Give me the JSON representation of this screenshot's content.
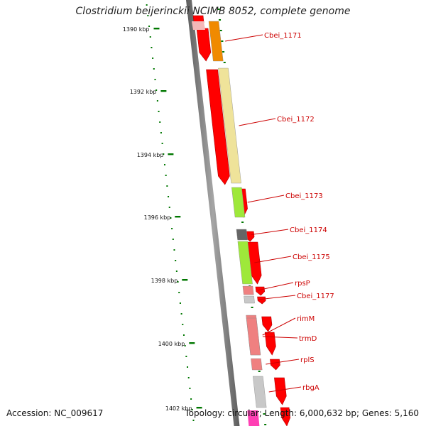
{
  "title": "Clostridium beijerinckii NCIMB 8052, complete genome",
  "accession": "Accession: NC_009617",
  "summary": "Topology: circular; Length: 6,000,632 bp; Genes: 5,160",
  "scale_labels": [
    "1390 kbp",
    "1392 kbp",
    "1394 kbp",
    "1396 kbp",
    "1398 kbp",
    "1400 kbp",
    "1402 kbp"
  ],
  "genes": [
    {
      "label": "Cbei_1171",
      "color": "#f08a00"
    },
    {
      "label": "Cbei_1172",
      "color": "#efe39a"
    },
    {
      "label": "Cbei_1173",
      "color": "#9ee83a"
    },
    {
      "label": "Cbei_1174",
      "color": "#666666"
    },
    {
      "label": "Cbei_1175",
      "color": "#9ee83a"
    },
    {
      "label": "rpsP",
      "color": "#ef8080"
    },
    {
      "label": "Cbei_1177",
      "color": "#c8c8c8"
    },
    {
      "label": "rimM",
      "color": "#ef8080"
    },
    {
      "label": "trmD",
      "color": "#ef8080"
    },
    {
      "label": "rplS",
      "color": "#ef8080"
    },
    {
      "label": "rbgA",
      "color": "#c8c8c8"
    }
  ],
  "colors": {
    "backbone": "#7a7a7a",
    "cds": "#ff0000",
    "label": "#cc0000",
    "tick": "#007700"
  }
}
